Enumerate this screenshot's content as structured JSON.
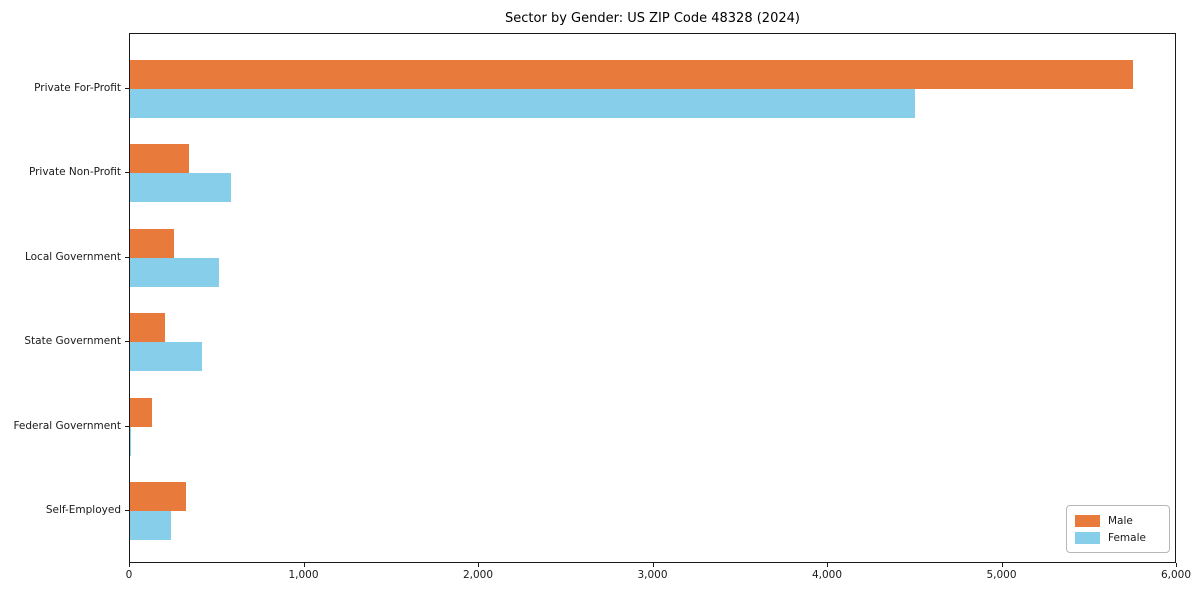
{
  "chart_data": {
    "type": "bar",
    "orientation": "horizontal",
    "title": "Sector by Gender: US ZIP Code 48328 (2024)",
    "xlabel": "",
    "ylabel": "",
    "categories": [
      "Private For-Profit",
      "Private Non-Profit",
      "Local Government",
      "State Government",
      "Federal Government",
      "Self-Employed"
    ],
    "series": [
      {
        "name": "Male",
        "values": [
          5750,
          340,
          250,
          200,
          125,
          320
        ]
      },
      {
        "name": "Female",
        "values": [
          4500,
          580,
          510,
          410,
          5,
          235
        ]
      }
    ],
    "xlim": [
      0,
      6000
    ],
    "xtick_labels": [
      "0",
      "1,000",
      "2,000",
      "3,000",
      "4,000",
      "5,000",
      "6,000"
    ],
    "grid": false,
    "legend_position": "lower right",
    "colors": {
      "male": "#e87a3c",
      "female": "#87ceeb"
    }
  }
}
